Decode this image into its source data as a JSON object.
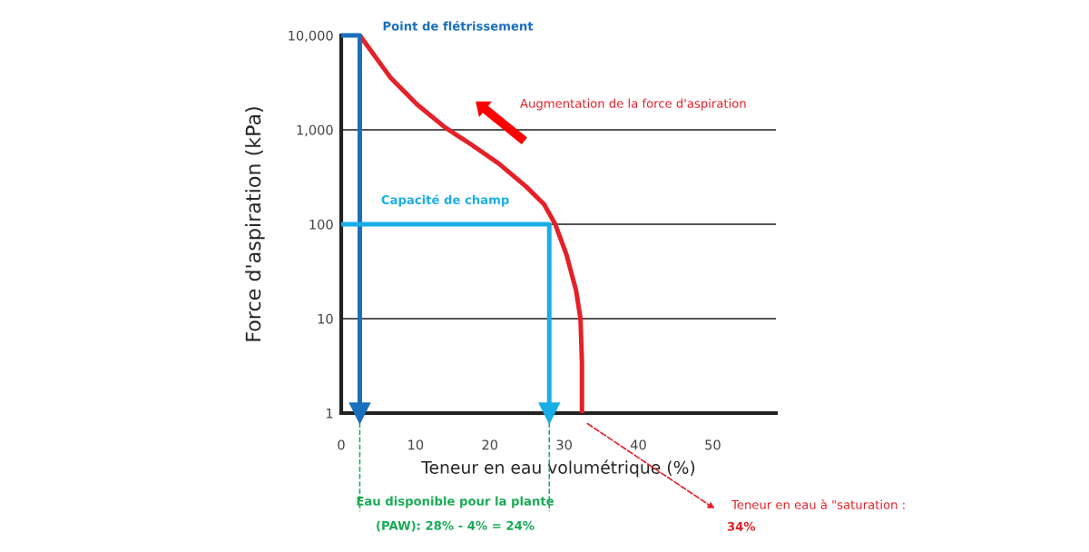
{
  "chart_data": {
    "type": "line",
    "xlabel": "Teneur en eau volumétrique (%)",
    "ylabel": "Force d'aspiration (kPa)",
    "series": [
      {
        "color": "#e42129",
        "x": [
          2.5,
          6.6,
          10.2,
          13.9,
          17.6,
          21.2,
          24.9,
          27.3,
          28.8,
          30.3,
          31.6,
          32.2,
          32.4,
          32.4
        ],
        "values": [
          10000,
          3600,
          1860,
          1070,
          690,
          440,
          250,
          163,
          100,
          48,
          20,
          10,
          3.4,
          1
        ]
      },
      {
        "name": "Point de flétrissement",
        "color": "#1b6fbd",
        "x": [
          0,
          2.5,
          2.5
        ],
        "values": [
          10000,
          10000,
          1
        ]
      },
      {
        "name": "Capacité de champ",
        "color": "#19ade6",
        "x": [
          0,
          28,
          28
        ],
        "values": [
          100,
          100,
          1
        ]
      }
    ],
    "log": "y",
    "xlim": [
      0,
      58.5
    ],
    "ylim": [
      1,
      10000
    ],
    "xticks": [
      0,
      10,
      20,
      30,
      40,
      50
    ],
    "yticks": [
      1,
      10,
      {
        "value": 100,
        "label": "100"
      },
      {
        "value": 1000,
        "label": "1,000"
      },
      {
        "value": 10000,
        "label": "10,000"
      }
    ],
    "grid": "y",
    "annotations": [
      "Augmentation de la force d'aspiration",
      "Teneur en eau à \"saturation :",
      "34%",
      "Eau disponible pour la plante",
      "(PAW): 28% - 4% = 24%"
    ]
  }
}
